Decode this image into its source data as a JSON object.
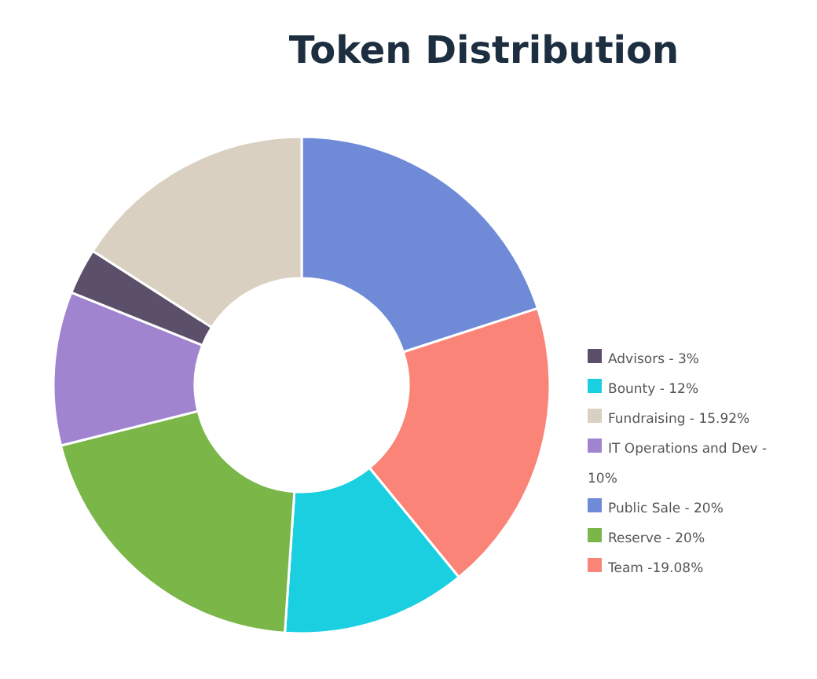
{
  "chart_data": {
    "type": "donut",
    "title": "Token Distribution",
    "legend": "right",
    "categories": [
      "Public Sale - 20%",
      "Team -19.08%",
      "Bounty - 12%",
      "Reserve - 20%",
      "IT Operations and Dev - 10%",
      "Advisors - 3%",
      "Fundraising - 15.92%"
    ],
    "values": [
      20,
      19.08,
      12,
      20,
      10,
      3,
      15.92
    ],
    "colors": [
      "#6f8bd8",
      "#f98477",
      "#19cfe0",
      "#7ab648",
      "#a084d0",
      "#5c4f6a",
      "#d9d0c1"
    ]
  }
}
